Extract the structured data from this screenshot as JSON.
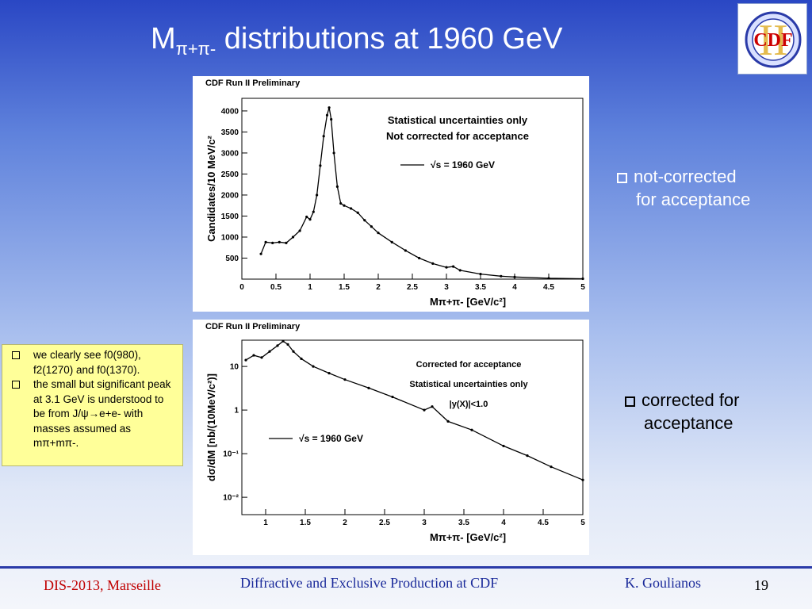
{
  "slide": {
    "title_main": "M",
    "title_sub": "π+π-",
    "title_rest": " distributions at 1960 GeV",
    "logo_text": "CDF",
    "logo_numeral": "II",
    "bullet_top": [
      "not-corrected",
      "for acceptance"
    ],
    "bullet_bottom": [
      "corrected for",
      "acceptance"
    ],
    "notes": [
      {
        "text": "we clearly see f0(980), f2(1270) and f0(1370)."
      },
      {
        "text": "the small but significant peak at 3.1 GeV is understood to be from J/ψ→e+e- with masses assumed as mπ+mπ-."
      }
    ],
    "footer_left": "DIS-2013, Marseille",
    "footer_center": "Diffractive and Exclusive Production at CDF",
    "footer_author": "K. Goulianos",
    "footer_page": "19"
  },
  "chart_data": [
    {
      "type": "scatter",
      "header": "CDF Run II Preliminary",
      "annotations": [
        "Statistical uncertainties only",
        "Not corrected for acceptance"
      ],
      "legend": "√s = 1960 GeV",
      "xlabel": "Mπ+π- [GeV/c²]",
      "ylabel": "Candidates/10 MeV/c²",
      "xlim": [
        0,
        5
      ],
      "ylim": [
        0,
        4300
      ],
      "xticks": [
        "0",
        "0.5",
        "1",
        "1.5",
        "2",
        "2.5",
        "3",
        "3.5",
        "4",
        "4.5",
        "5"
      ],
      "yticks": [
        "500",
        "1000",
        "1500",
        "2000",
        "2500",
        "3000",
        "3500",
        "4000"
      ],
      "series": [
        {
          "x": [
            0.28,
            0.35,
            0.45,
            0.55,
            0.65,
            0.75,
            0.85,
            0.95,
            1.0,
            1.05,
            1.1,
            1.15,
            1.2,
            1.25,
            1.28,
            1.31,
            1.35,
            1.4,
            1.45,
            1.5,
            1.6,
            1.7,
            1.8,
            1.9,
            2.0,
            2.2,
            2.4,
            2.6,
            2.8,
            3.0,
            3.1,
            3.2,
            3.5,
            3.8,
            4.0,
            4.5,
            5.0
          ],
          "y": [
            600,
            880,
            860,
            880,
            860,
            1000,
            1150,
            1480,
            1420,
            1600,
            2000,
            2700,
            3400,
            3900,
            4080,
            3800,
            3000,
            2200,
            1800,
            1750,
            1680,
            1580,
            1400,
            1250,
            1100,
            880,
            680,
            500,
            370,
            280,
            300,
            210,
            120,
            70,
            50,
            20,
            10
          ]
        }
      ]
    },
    {
      "type": "scatter",
      "header": "CDF Run II Preliminary",
      "annotations": [
        "Corrected for acceptance",
        "Statistical uncertainties only",
        "|y(X)|<1.0"
      ],
      "legend": "√s = 1960 GeV",
      "xlabel": "Mπ+π- [GeV/c²]",
      "ylabel": "dσ/dM [nb/(10MeV/c²)]",
      "log_y": true,
      "xlim": [
        0.7,
        5
      ],
      "ylim": [
        0.004,
        40
      ],
      "xticks": [
        "1",
        "1.5",
        "2",
        "2.5",
        "3",
        "3.5",
        "4",
        "4.5",
        "5"
      ],
      "yticks": [
        "10⁻²",
        "10⁻¹",
        "1",
        "10"
      ],
      "series": [
        {
          "x": [
            0.75,
            0.85,
            0.95,
            1.05,
            1.15,
            1.22,
            1.28,
            1.35,
            1.45,
            1.6,
            1.8,
            2.0,
            2.3,
            2.6,
            3.0,
            3.1,
            3.3,
            3.6,
            4.0,
            4.3,
            4.6,
            5.0
          ],
          "y": [
            14,
            18,
            16,
            22,
            30,
            38,
            32,
            22,
            15,
            10,
            7,
            5,
            3.2,
            2.0,
            1.0,
            1.2,
            0.55,
            0.35,
            0.15,
            0.09,
            0.05,
            0.025
          ]
        }
      ]
    }
  ]
}
